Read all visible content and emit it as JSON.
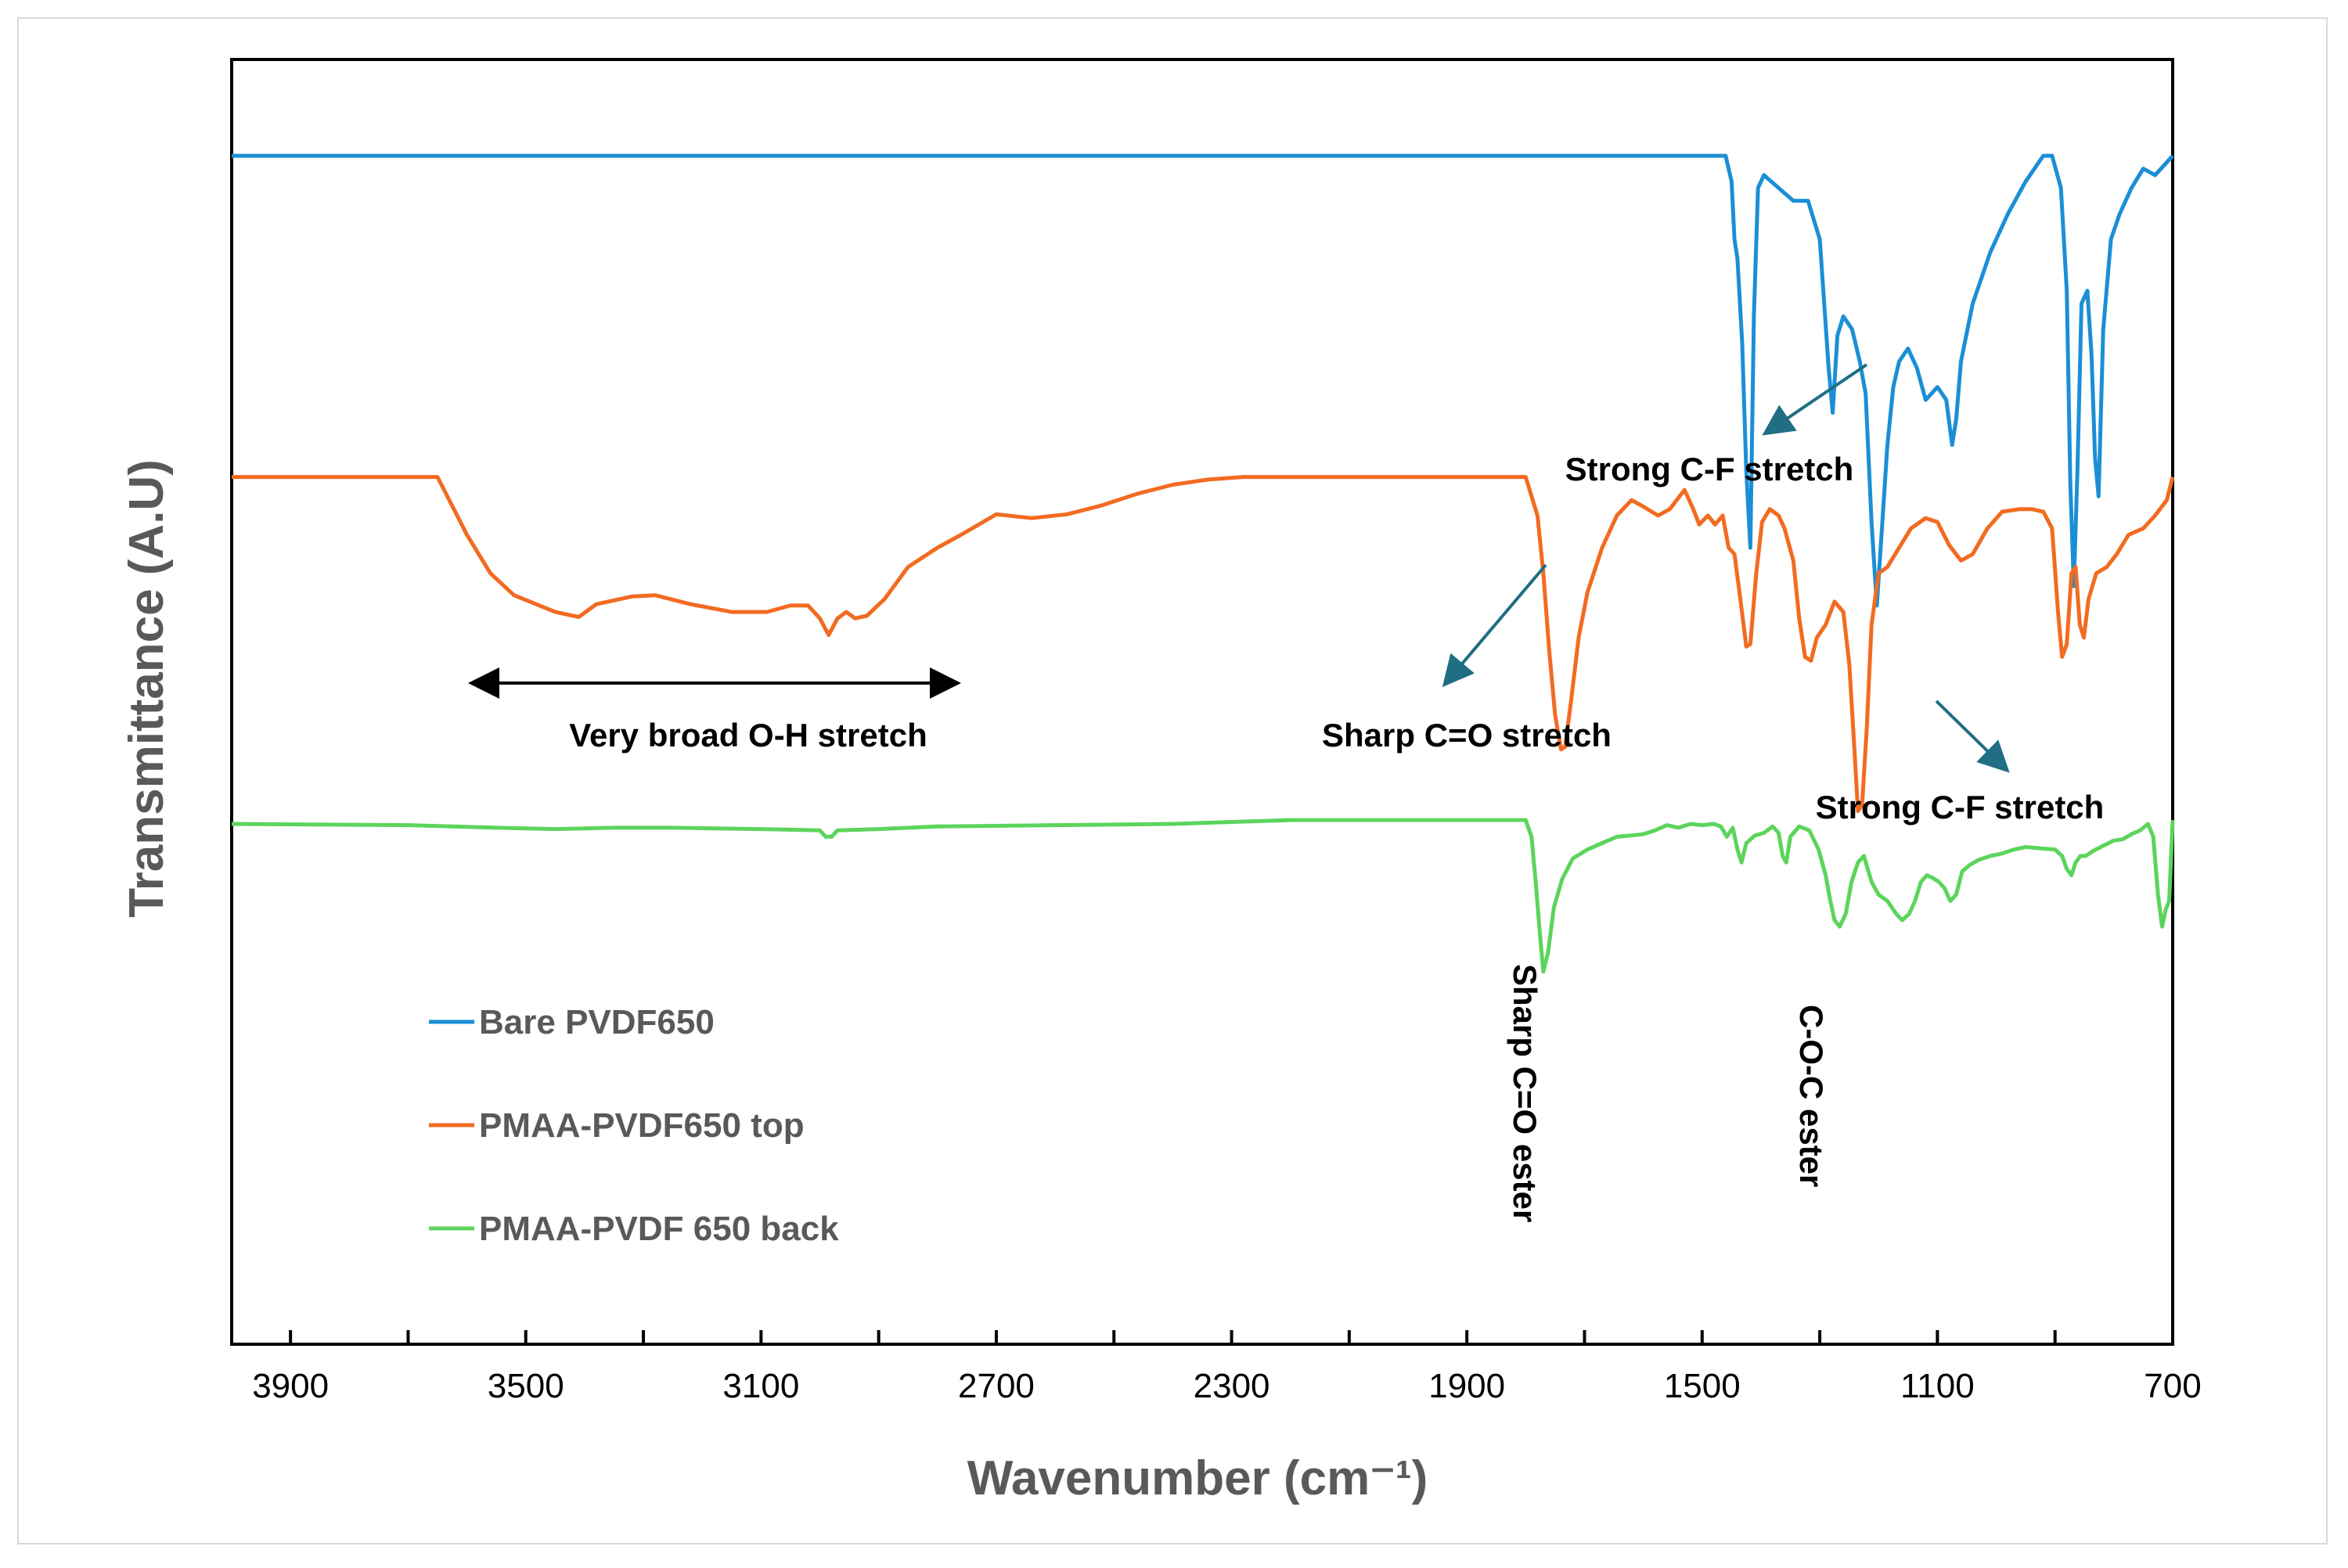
{
  "chart_data": {
    "type": "line",
    "title": "",
    "xlabel": "Wavenumber (cm⁻¹)",
    "ylabel": "Transmittance (A.U)",
    "xlim": [
      4000,
      700
    ],
    "x_reversed": true,
    "ylim": [
      0,
      100
    ],
    "grid": false,
    "xticks": [
      3900,
      3500,
      3100,
      2700,
      2300,
      1900,
      1500,
      1100,
      700
    ],
    "xticks_minor_step": 200,
    "legend_position": "lower-left",
    "colors": {
      "axis": "#000000",
      "arrow_teal": "#1f6e83",
      "grey_text": "#595959"
    },
    "series": [
      {
        "name": "Bare PVDF650",
        "color": "#1b8fd6",
        "points": [
          [
            4000,
            92.5
          ],
          [
            1460,
            92.5
          ],
          [
            1450,
            90.5
          ],
          [
            1445,
            86
          ],
          [
            1440,
            84.5
          ],
          [
            1432,
            78
          ],
          [
            1425,
            68
          ],
          [
            1418,
            62
          ],
          [
            1412,
            80
          ],
          [
            1405,
            90
          ],
          [
            1395,
            91
          ],
          [
            1370,
            90
          ],
          [
            1345,
            89
          ],
          [
            1320,
            89
          ],
          [
            1300,
            86
          ],
          [
            1285,
            76
          ],
          [
            1278,
            72.5
          ],
          [
            1270,
            78.5
          ],
          [
            1260,
            80
          ],
          [
            1245,
            79
          ],
          [
            1232,
            76.5
          ],
          [
            1222,
            74
          ],
          [
            1212,
            64
          ],
          [
            1203,
            57.5
          ],
          [
            1195,
            63
          ],
          [
            1185,
            70
          ],
          [
            1175,
            74.5
          ],
          [
            1165,
            76.5
          ],
          [
            1150,
            77.5
          ],
          [
            1135,
            76
          ],
          [
            1120,
            73.5
          ],
          [
            1100,
            74.5
          ],
          [
            1085,
            73.5
          ],
          [
            1075,
            70
          ],
          [
            1068,
            72
          ],
          [
            1060,
            76.5
          ],
          [
            1040,
            81
          ],
          [
            1010,
            85
          ],
          [
            980,
            88
          ],
          [
            950,
            90.5
          ],
          [
            920,
            92.5
          ],
          [
            905,
            92.5
          ],
          [
            890,
            90
          ],
          [
            880,
            82
          ],
          [
            874,
            67
          ],
          [
            868,
            59
          ],
          [
            862,
            68
          ],
          [
            855,
            81
          ],
          [
            845,
            82
          ],
          [
            838,
            77
          ],
          [
            832,
            69
          ],
          [
            826,
            66
          ],
          [
            818,
            79
          ],
          [
            805,
            86
          ],
          [
            790,
            88
          ],
          [
            770,
            90
          ],
          [
            750,
            91.5
          ],
          [
            730,
            91
          ],
          [
            710,
            92
          ],
          [
            700,
            92.5
          ]
        ]
      },
      {
        "name": "PMAA-PVDF650 top",
        "color": "#f26b21",
        "points": [
          [
            4000,
            67.5
          ],
          [
            3650,
            67.5
          ],
          [
            3600,
            63
          ],
          [
            3560,
            60
          ],
          [
            3520,
            58.3
          ],
          [
            3450,
            57
          ],
          [
            3410,
            56.6
          ],
          [
            3380,
            57.6
          ],
          [
            3320,
            58.2
          ],
          [
            3280,
            58.3
          ],
          [
            3220,
            57.6
          ],
          [
            3150,
            57
          ],
          [
            3090,
            57
          ],
          [
            3050,
            57.5
          ],
          [
            3020,
            57.5
          ],
          [
            3000,
            56.5
          ],
          [
            2985,
            55.2
          ],
          [
            2970,
            56.5
          ],
          [
            2955,
            57
          ],
          [
            2940,
            56.5
          ],
          [
            2920,
            56.7
          ],
          [
            2890,
            58
          ],
          [
            2850,
            60.5
          ],
          [
            2800,
            62
          ],
          [
            2760,
            63
          ],
          [
            2700,
            64.6
          ],
          [
            2640,
            64.3
          ],
          [
            2580,
            64.6
          ],
          [
            2520,
            65.3
          ],
          [
            2460,
            66.2
          ],
          [
            2400,
            66.9
          ],
          [
            2340,
            67.3
          ],
          [
            2280,
            67.5
          ],
          [
            1800,
            67.5
          ],
          [
            1780,
            64.5
          ],
          [
            1770,
            60
          ],
          [
            1760,
            54
          ],
          [
            1750,
            49
          ],
          [
            1740,
            46.3
          ],
          [
            1733,
            46.5
          ],
          [
            1723,
            50
          ],
          [
            1710,
            55
          ],
          [
            1695,
            58.5
          ],
          [
            1670,
            62
          ],
          [
            1645,
            64.5
          ],
          [
            1620,
            65.7
          ],
          [
            1600,
            65.2
          ],
          [
            1575,
            64.5
          ],
          [
            1555,
            65
          ],
          [
            1530,
            66.5
          ],
          [
            1515,
            65
          ],
          [
            1505,
            63.8
          ],
          [
            1490,
            64.5
          ],
          [
            1478,
            63.8
          ],
          [
            1465,
            64.5
          ],
          [
            1455,
            62
          ],
          [
            1445,
            61.5
          ],
          [
            1435,
            58
          ],
          [
            1425,
            54.3
          ],
          [
            1418,
            54.5
          ],
          [
            1408,
            60
          ],
          [
            1398,
            64
          ],
          [
            1385,
            65
          ],
          [
            1370,
            64.5
          ],
          [
            1360,
            63.5
          ],
          [
            1345,
            61
          ],
          [
            1335,
            56.5
          ],
          [
            1325,
            53.5
          ],
          [
            1315,
            53.2
          ],
          [
            1305,
            55
          ],
          [
            1290,
            56
          ],
          [
            1275,
            57.8
          ],
          [
            1260,
            57
          ],
          [
            1250,
            53
          ],
          [
            1242,
            47
          ],
          [
            1235,
            41.5
          ],
          [
            1228,
            42
          ],
          [
            1220,
            48
          ],
          [
            1212,
            56
          ],
          [
            1200,
            60
          ],
          [
            1185,
            60.5
          ],
          [
            1165,
            62
          ],
          [
            1145,
            63.5
          ],
          [
            1120,
            64.3
          ],
          [
            1100,
            64
          ],
          [
            1080,
            62.2
          ],
          [
            1060,
            61
          ],
          [
            1040,
            61.5
          ],
          [
            1015,
            63.5
          ],
          [
            990,
            64.8
          ],
          [
            960,
            65
          ],
          [
            940,
            65
          ],
          [
            920,
            64.8
          ],
          [
            905,
            63.5
          ],
          [
            895,
            57
          ],
          [
            888,
            53.5
          ],
          [
            880,
            54.5
          ],
          [
            872,
            60
          ],
          [
            865,
            60.5
          ],
          [
            858,
            56
          ],
          [
            851,
            55
          ],
          [
            843,
            58
          ],
          [
            830,
            60
          ],
          [
            812,
            60.5
          ],
          [
            795,
            61.5
          ],
          [
            775,
            63
          ],
          [
            750,
            63.5
          ],
          [
            730,
            64.5
          ],
          [
            710,
            65.7
          ],
          [
            700,
            67.5
          ]
        ]
      },
      {
        "name": "PMAA-PVDF 650 back",
        "color": "#5cd45c",
        "points": [
          [
            4000,
            40.5
          ],
          [
            3700,
            40.4
          ],
          [
            3550,
            40.2
          ],
          [
            3450,
            40.1
          ],
          [
            3350,
            40.2
          ],
          [
            3250,
            40.2
          ],
          [
            3100,
            40.1
          ],
          [
            3000,
            40
          ],
          [
            2990,
            39.5
          ],
          [
            2980,
            39.5
          ],
          [
            2970,
            40
          ],
          [
            2900,
            40.1
          ],
          [
            2800,
            40.3
          ],
          [
            2600,
            40.4
          ],
          [
            2400,
            40.5
          ],
          [
            2200,
            40.8
          ],
          [
            1800,
            40.8
          ],
          [
            1790,
            39.5
          ],
          [
            1783,
            36
          ],
          [
            1776,
            32
          ],
          [
            1770,
            29
          ],
          [
            1762,
            30.5
          ],
          [
            1752,
            34
          ],
          [
            1738,
            36.2
          ],
          [
            1720,
            37.8
          ],
          [
            1695,
            38.5
          ],
          [
            1670,
            39
          ],
          [
            1645,
            39.5
          ],
          [
            1620,
            39.6
          ],
          [
            1600,
            39.7
          ],
          [
            1580,
            40
          ],
          [
            1560,
            40.4
          ],
          [
            1540,
            40.2
          ],
          [
            1520,
            40.5
          ],
          [
            1500,
            40.4
          ],
          [
            1480,
            40.5
          ],
          [
            1468,
            40.3
          ],
          [
            1458,
            39.5
          ],
          [
            1448,
            40.2
          ],
          [
            1440,
            38.5
          ],
          [
            1433,
            37.5
          ],
          [
            1425,
            39
          ],
          [
            1410,
            39.6
          ],
          [
            1395,
            39.8
          ],
          [
            1380,
            40.3
          ],
          [
            1370,
            39.8
          ],
          [
            1363,
            38
          ],
          [
            1357,
            37.5
          ],
          [
            1350,
            39.5
          ],
          [
            1335,
            40.3
          ],
          [
            1318,
            40
          ],
          [
            1302,
            38.5
          ],
          [
            1290,
            36.5
          ],
          [
            1282,
            34.5
          ],
          [
            1275,
            33
          ],
          [
            1266,
            32.5
          ],
          [
            1256,
            33.5
          ],
          [
            1246,
            36
          ],
          [
            1235,
            37.5
          ],
          [
            1225,
            38
          ],
          [
            1212,
            36
          ],
          [
            1200,
            35
          ],
          [
            1185,
            34.5
          ],
          [
            1170,
            33.5
          ],
          [
            1160,
            33
          ],
          [
            1148,
            33.5
          ],
          [
            1138,
            34.5
          ],
          [
            1128,
            36
          ],
          [
            1118,
            36.5
          ],
          [
            1108,
            36.3
          ],
          [
            1098,
            36
          ],
          [
            1088,
            35.5
          ],
          [
            1078,
            34.5
          ],
          [
            1068,
            35
          ],
          [
            1058,
            36.8
          ],
          [
            1045,
            37.3
          ],
          [
            1030,
            37.7
          ],
          [
            1010,
            38
          ],
          [
            990,
            38.2
          ],
          [
            970,
            38.5
          ],
          [
            950,
            38.7
          ],
          [
            925,
            38.6
          ],
          [
            900,
            38.5
          ],
          [
            888,
            38
          ],
          [
            880,
            37
          ],
          [
            872,
            36.5
          ],
          [
            865,
            37.5
          ],
          [
            857,
            38
          ],
          [
            848,
            38
          ],
          [
            835,
            38.4
          ],
          [
            818,
            38.8
          ],
          [
            800,
            39.2
          ],
          [
            785,
            39.3
          ],
          [
            770,
            39.7
          ],
          [
            755,
            40
          ],
          [
            742,
            40.5
          ],
          [
            733,
            39.5
          ],
          [
            725,
            35
          ],
          [
            718,
            32.5
          ],
          [
            712,
            33.8
          ],
          [
            706,
            34.5
          ],
          [
            700,
            40.8
          ]
        ]
      }
    ],
    "annotations": [
      {
        "text": "Strong C-F stretch"
      },
      {
        "text": "Very broad O-H stretch"
      },
      {
        "text": "Sharp C=O stretch"
      },
      {
        "text": "Strong C-F stretch"
      },
      {
        "text": "Sharp C=O ester"
      },
      {
        "text": "C-O-C ester"
      }
    ]
  }
}
